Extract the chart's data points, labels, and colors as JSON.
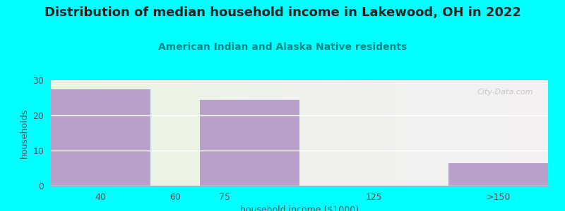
{
  "title": "Distribution of median household income in Lakewood, OH in 2022",
  "subtitle": "American Indian and Alaska Native residents",
  "xlabel": "household income ($1000)",
  "ylabel": "households",
  "bar_edges": [
    0,
    1,
    1.5,
    2.5,
    4,
    5
  ],
  "tick_positions": [
    0.5,
    1.25,
    1.75,
    3.25,
    4.5
  ],
  "tick_labels": [
    "40",
    "60",
    "75",
    "125",
    ">150"
  ],
  "values": [
    27.5,
    0,
    24.5,
    0,
    6.5
  ],
  "bar_color": "#b8a0cc",
  "ylim": [
    0,
    30
  ],
  "yticks": [
    0,
    10,
    20,
    30
  ],
  "xlim": [
    0,
    5
  ],
  "background_outer": "#00ffff",
  "title_fontsize": 13,
  "subtitle_fontsize": 10,
  "subtitle_color": "#008888",
  "axis_label_color": "#555555",
  "tick_color": "#555555",
  "watermark": "City-Data.com",
  "bg_left_color": "#e8f5e0",
  "bg_right_color": "#f5f0f5"
}
